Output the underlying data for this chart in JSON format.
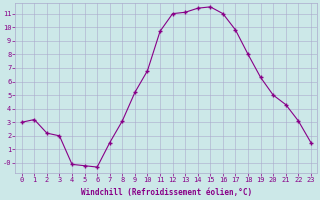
{
  "x": [
    0,
    1,
    2,
    3,
    4,
    5,
    6,
    7,
    8,
    9,
    10,
    11,
    12,
    13,
    14,
    15,
    16,
    17,
    18,
    19,
    20,
    21,
    22,
    23
  ],
  "y": [
    3.0,
    3.2,
    2.2,
    2.0,
    -0.1,
    -0.2,
    -0.3,
    1.5,
    3.1,
    5.2,
    6.8,
    9.7,
    11.0,
    11.1,
    11.4,
    11.5,
    11.0,
    9.8,
    8.0,
    6.3,
    5.0,
    4.3,
    3.1,
    1.5
  ],
  "xlabel": "Windchill (Refroidissement éolien,°C)",
  "ylim": [
    -0.7,
    11.8
  ],
  "xlim": [
    -0.5,
    23.5
  ],
  "line_color": "#880088",
  "marker_color": "#880088",
  "bg_color": "#cce8e8",
  "grid_color": "#aaaacc",
  "xlabel_color": "#880088",
  "tick_color": "#880088",
  "tick_fontsize": 5.0,
  "xlabel_fontsize": 5.5
}
